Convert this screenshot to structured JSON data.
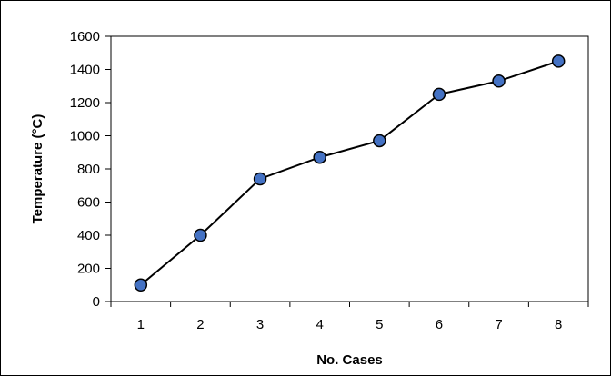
{
  "chart_data": {
    "type": "line",
    "xlabel": "No. Cases",
    "ylabel": "Temperature (°C)",
    "x": [
      1,
      2,
      3,
      4,
      5,
      6,
      7,
      8
    ],
    "series": [
      {
        "values": [
          100,
          400,
          740,
          870,
          970,
          1250,
          1330,
          1450
        ],
        "line_color": "#000000",
        "marker_fill": "#4472C4",
        "marker_edge": "#000000",
        "marker": "circle"
      }
    ],
    "ylim": [
      0,
      1600
    ],
    "yticks": [
      0,
      200,
      400,
      600,
      800,
      1000,
      1200,
      1400,
      1600
    ],
    "xticks": [
      1,
      2,
      3,
      4,
      5,
      6,
      7,
      8
    ],
    "grid": false,
    "legend": "none"
  }
}
